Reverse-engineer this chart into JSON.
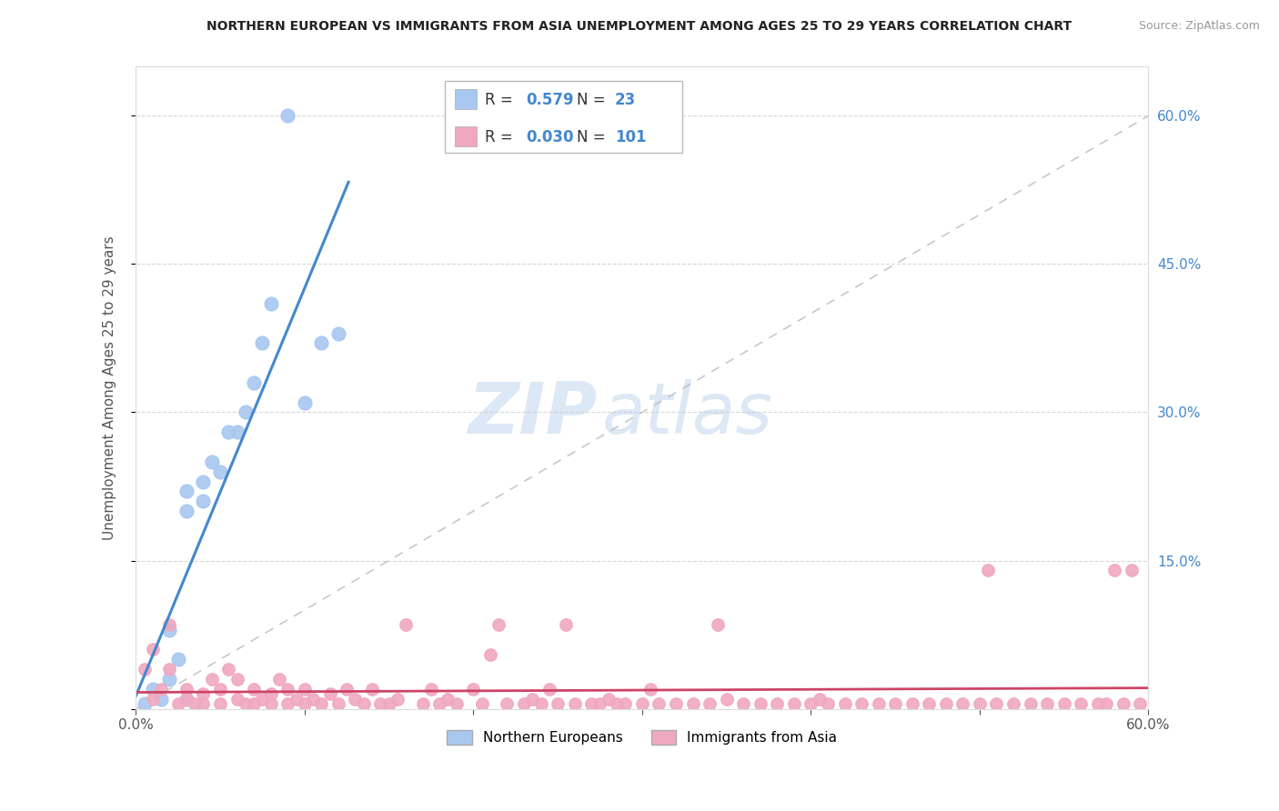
{
  "title": "NORTHERN EUROPEAN VS IMMIGRANTS FROM ASIA UNEMPLOYMENT AMONG AGES 25 TO 29 YEARS CORRELATION CHART",
  "source": "Source: ZipAtlas.com",
  "ylabel": "Unemployment Among Ages 25 to 29 years",
  "xlim": [
    0.0,
    0.6
  ],
  "ylim": [
    0.0,
    0.65
  ],
  "grid_color": "#cccccc",
  "background_color": "#ffffff",
  "watermark_zip": "ZIP",
  "watermark_atlas": "atlas",
  "watermark_color": "#dce8f5",
  "blue_scatter_color": "#a8c8f0",
  "pink_scatter_color": "#f0a8c0",
  "blue_line_color": "#4488cc",
  "pink_line_color": "#cc4466",
  "gray_dash_color": "#bbbbbb",
  "legend_R_color": "#4488cc",
  "legend_text_color": "#333333",
  "legend_R_blue": "0.579",
  "legend_N_blue": "23",
  "legend_R_pink": "0.030",
  "legend_N_pink": "101",
  "legend_label_blue": "Northern Europeans",
  "legend_label_pink": "Immigrants from Asia",
  "blue_x": [
    0.005,
    0.01,
    0.015,
    0.02,
    0.02,
    0.025,
    0.03,
    0.03,
    0.04,
    0.04,
    0.045,
    0.05,
    0.055,
    0.06,
    0.065,
    0.07,
    0.075,
    0.08,
    0.09,
    0.1,
    0.11,
    0.12,
    0.03
  ],
  "blue_y": [
    0.005,
    0.02,
    0.01,
    0.03,
    0.08,
    0.05,
    0.2,
    0.22,
    0.21,
    0.23,
    0.25,
    0.24,
    0.28,
    0.28,
    0.3,
    0.33,
    0.37,
    0.41,
    0.6,
    0.31,
    0.37,
    0.38,
    0.01
  ],
  "pink_x": [
    0.005,
    0.01,
    0.01,
    0.015,
    0.02,
    0.02,
    0.025,
    0.03,
    0.03,
    0.035,
    0.04,
    0.04,
    0.045,
    0.05,
    0.05,
    0.055,
    0.06,
    0.06,
    0.065,
    0.07,
    0.07,
    0.075,
    0.08,
    0.08,
    0.085,
    0.09,
    0.09,
    0.095,
    0.1,
    0.1,
    0.105,
    0.11,
    0.115,
    0.12,
    0.125,
    0.13,
    0.135,
    0.14,
    0.145,
    0.15,
    0.155,
    0.16,
    0.17,
    0.175,
    0.18,
    0.185,
    0.19,
    0.2,
    0.205,
    0.21,
    0.215,
    0.22,
    0.23,
    0.235,
    0.24,
    0.245,
    0.25,
    0.255,
    0.26,
    0.27,
    0.275,
    0.28,
    0.285,
    0.29,
    0.3,
    0.305,
    0.31,
    0.32,
    0.33,
    0.34,
    0.345,
    0.35,
    0.36,
    0.37,
    0.38,
    0.39,
    0.4,
    0.405,
    0.41,
    0.42,
    0.43,
    0.44,
    0.45,
    0.46,
    0.47,
    0.48,
    0.49,
    0.5,
    0.505,
    0.51,
    0.52,
    0.53,
    0.54,
    0.55,
    0.56,
    0.57,
    0.575,
    0.58,
    0.585,
    0.59,
    0.595
  ],
  "pink_y": [
    0.04,
    0.06,
    0.01,
    0.02,
    0.04,
    0.085,
    0.005,
    0.01,
    0.02,
    0.005,
    0.005,
    0.015,
    0.03,
    0.02,
    0.005,
    0.04,
    0.01,
    0.03,
    0.005,
    0.02,
    0.005,
    0.01,
    0.015,
    0.005,
    0.03,
    0.02,
    0.005,
    0.01,
    0.005,
    0.02,
    0.01,
    0.005,
    0.015,
    0.005,
    0.02,
    0.01,
    0.005,
    0.02,
    0.005,
    0.005,
    0.01,
    0.085,
    0.005,
    0.02,
    0.005,
    0.01,
    0.005,
    0.02,
    0.005,
    0.055,
    0.085,
    0.005,
    0.005,
    0.01,
    0.005,
    0.02,
    0.005,
    0.085,
    0.005,
    0.005,
    0.005,
    0.01,
    0.005,
    0.005,
    0.005,
    0.02,
    0.005,
    0.005,
    0.005,
    0.005,
    0.085,
    0.01,
    0.005,
    0.005,
    0.005,
    0.005,
    0.005,
    0.01,
    0.005,
    0.005,
    0.005,
    0.005,
    0.005,
    0.005,
    0.005,
    0.005,
    0.005,
    0.005,
    0.14,
    0.005,
    0.005,
    0.005,
    0.005,
    0.005,
    0.005,
    0.005,
    0.005,
    0.14,
    0.005,
    0.14,
    0.005
  ]
}
